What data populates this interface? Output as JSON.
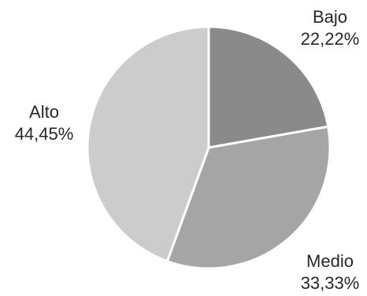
{
  "chart_data": {
    "type": "pie",
    "start_angle_deg": 0,
    "direction": "clockwise",
    "slices": [
      {
        "name": "Bajo",
        "value": 22.22,
        "label": "22,22%",
        "color": "#8a8a8a"
      },
      {
        "name": "Medio",
        "value": 33.33,
        "label": "33,33%",
        "color": "#a5a5a5"
      },
      {
        "name": "Alto",
        "value": 44.45,
        "label": "44,45%",
        "color": "#cccccc"
      }
    ]
  }
}
